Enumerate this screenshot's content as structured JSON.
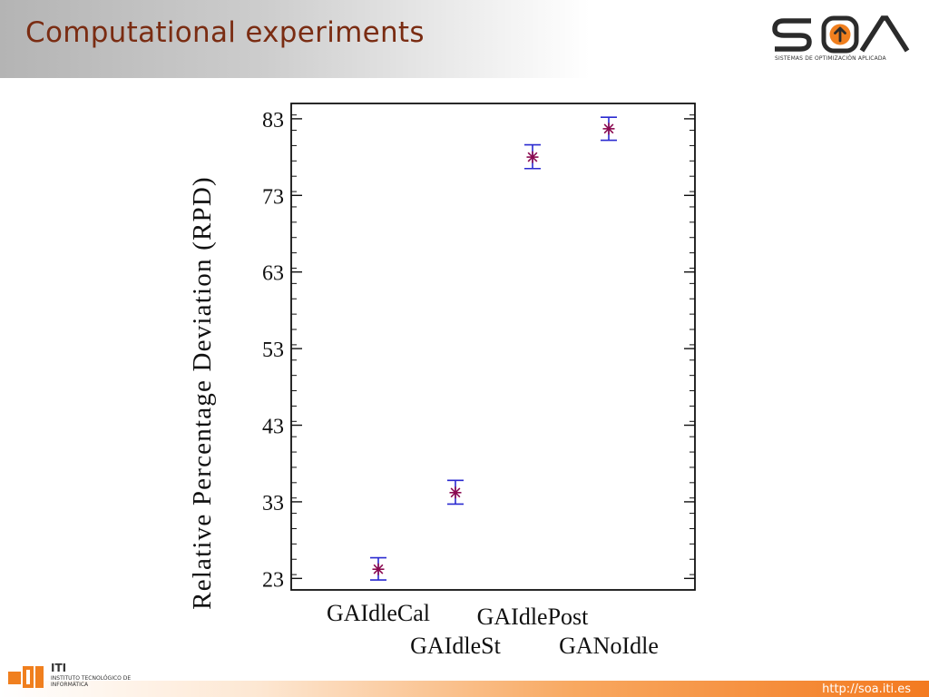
{
  "slide": {
    "title": "Computational experiments",
    "url": "http://soa.iti.es"
  },
  "soa_logo": {
    "wordmark": "SOA",
    "tagline": "SISTEMAS DE OPTIMIZACIÓN APLICADA",
    "icon": "up-arrow-icon",
    "accent": "#f07f1e"
  },
  "iti_logo": {
    "name": "ITI",
    "full_name": "INSTITUTO TECNOLÓGICO DE INFORMÁTICA",
    "accent": "#f07f1e"
  },
  "chart_data": {
    "type": "scatter",
    "chart_subtype": "means-plot-with-interval-bars",
    "title": "",
    "xlabel": "",
    "ylabel": "Relative Percentage Deviation (RPD)",
    "ylim": [
      21.5,
      85
    ],
    "yticks": [
      23,
      33,
      43,
      53,
      63,
      73,
      83
    ],
    "categories": [
      "GAIdleCal",
      "GAIdleSt",
      "GAIdlePost",
      "GANoIdle"
    ],
    "means": [
      24.2,
      34.2,
      78.0,
      81.7
    ],
    "lower": [
      22.8,
      32.7,
      76.5,
      80.2
    ],
    "upper": [
      25.7,
      35.8,
      79.6,
      83.2
    ],
    "marker": "asterisk",
    "grid": false,
    "colors": {
      "interval": "#2a2ad0",
      "marker": "#8b0a50",
      "axis": "#111111"
    }
  }
}
